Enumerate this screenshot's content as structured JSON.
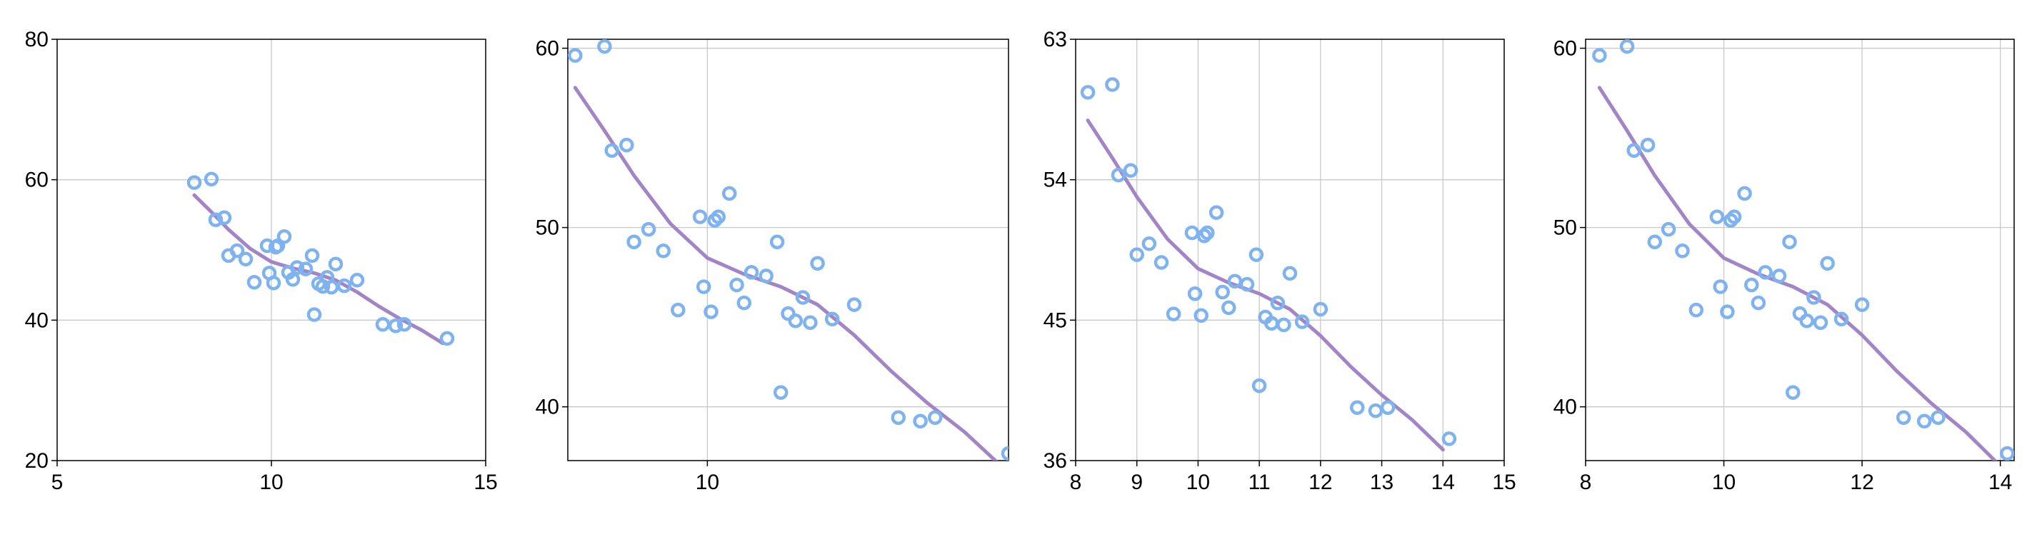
{
  "chart_data": [
    {
      "type": "scatter",
      "xlim": [
        5,
        15
      ],
      "ylim": [
        20,
        80
      ],
      "xticks": [
        5,
        10,
        15
      ],
      "yticks": [
        20,
        40,
        60,
        80
      ],
      "grid": true,
      "series": [
        {
          "kind": "points",
          "color": "#7fb3ef",
          "points": [
            [
              8.2,
              59.6
            ],
            [
              8.6,
              60.1
            ],
            [
              8.7,
              54.3
            ],
            [
              8.9,
              54.6
            ],
            [
              9.0,
              49.2
            ],
            [
              9.2,
              49.9
            ],
            [
              9.4,
              48.7
            ],
            [
              9.6,
              45.4
            ],
            [
              9.9,
              50.6
            ],
            [
              9.95,
              46.7
            ],
            [
              10.05,
              45.3
            ],
            [
              10.1,
              50.4
            ],
            [
              10.15,
              50.6
            ],
            [
              10.3,
              51.9
            ],
            [
              10.4,
              46.8
            ],
            [
              10.5,
              45.8
            ],
            [
              10.6,
              47.5
            ],
            [
              10.8,
              47.3
            ],
            [
              10.95,
              49.2
            ],
            [
              11.0,
              40.8
            ],
            [
              11.1,
              45.2
            ],
            [
              11.2,
              44.8
            ],
            [
              11.3,
              46.1
            ],
            [
              11.4,
              44.7
            ],
            [
              11.5,
              48.0
            ],
            [
              11.7,
              44.9
            ],
            [
              12.0,
              45.7
            ],
            [
              12.6,
              39.4
            ],
            [
              12.9,
              39.2
            ],
            [
              13.1,
              39.4
            ],
            [
              14.1,
              37.4
            ]
          ]
        },
        {
          "kind": "line",
          "color": "#a285c7",
          "points": [
            [
              8.2,
              57.8
            ],
            [
              8.6,
              55.4
            ],
            [
              9.0,
              52.9
            ],
            [
              9.5,
              50.2
            ],
            [
              10.0,
              48.3
            ],
            [
              10.5,
              47.4
            ],
            [
              11.0,
              46.7
            ],
            [
              11.5,
              45.7
            ],
            [
              12.0,
              44.0
            ],
            [
              12.5,
              42.0
            ],
            [
              13.0,
              40.2
            ],
            [
              13.5,
              38.6
            ],
            [
              14.0,
              36.7
            ]
          ]
        }
      ]
    },
    {
      "type": "scatter",
      "xlim": [
        8.1,
        14.1
      ],
      "ylim": [
        37,
        60.5
      ],
      "xticks": [
        10
      ],
      "yticks": [
        40,
        50,
        60
      ],
      "grid": true,
      "series": [
        {
          "kind": "points",
          "color": "#7fb3ef",
          "points": [
            [
              8.2,
              59.6
            ],
            [
              8.6,
              60.1
            ],
            [
              8.7,
              54.3
            ],
            [
              8.9,
              54.6
            ],
            [
              9.0,
              49.2
            ],
            [
              9.2,
              49.9
            ],
            [
              9.4,
              48.7
            ],
            [
              9.6,
              45.4
            ],
            [
              9.9,
              50.6
            ],
            [
              9.95,
              46.7
            ],
            [
              10.05,
              45.3
            ],
            [
              10.1,
              50.4
            ],
            [
              10.15,
              50.6
            ],
            [
              10.3,
              51.9
            ],
            [
              10.4,
              46.8
            ],
            [
              10.5,
              45.8
            ],
            [
              10.6,
              47.5
            ],
            [
              10.8,
              47.3
            ],
            [
              10.95,
              49.2
            ],
            [
              11.0,
              40.8
            ],
            [
              11.1,
              45.2
            ],
            [
              11.2,
              44.8
            ],
            [
              11.3,
              46.1
            ],
            [
              11.4,
              44.7
            ],
            [
              11.5,
              48.0
            ],
            [
              11.7,
              44.9
            ],
            [
              12.0,
              45.7
            ],
            [
              12.6,
              39.4
            ],
            [
              12.9,
              39.2
            ],
            [
              13.1,
              39.4
            ],
            [
              14.1,
              37.4
            ]
          ]
        },
        {
          "kind": "line",
          "color": "#a285c7",
          "points": [
            [
              8.2,
              57.8
            ],
            [
              8.6,
              55.4
            ],
            [
              9.0,
              52.9
            ],
            [
              9.5,
              50.2
            ],
            [
              10.0,
              48.3
            ],
            [
              10.5,
              47.4
            ],
            [
              11.0,
              46.7
            ],
            [
              11.5,
              45.7
            ],
            [
              12.0,
              44.0
            ],
            [
              12.5,
              42.0
            ],
            [
              13.0,
              40.2
            ],
            [
              13.5,
              38.6
            ],
            [
              14.0,
              36.7
            ]
          ]
        }
      ]
    },
    {
      "type": "scatter",
      "xlim": [
        8,
        15
      ],
      "ylim": [
        36,
        63
      ],
      "xticks": [
        8,
        9,
        10,
        11,
        12,
        13,
        14,
        15
      ],
      "yticks": [
        36,
        45,
        54,
        63
      ],
      "grid": true,
      "series": [
        {
          "kind": "points",
          "color": "#7fb3ef",
          "points": [
            [
              8.2,
              59.6
            ],
            [
              8.6,
              60.1
            ],
            [
              8.7,
              54.3
            ],
            [
              8.9,
              54.6
            ],
            [
              9.0,
              49.2
            ],
            [
              9.2,
              49.9
            ],
            [
              9.4,
              48.7
            ],
            [
              9.6,
              45.4
            ],
            [
              9.9,
              50.6
            ],
            [
              9.95,
              46.7
            ],
            [
              10.05,
              45.3
            ],
            [
              10.1,
              50.4
            ],
            [
              10.15,
              50.6
            ],
            [
              10.3,
              51.9
            ],
            [
              10.4,
              46.8
            ],
            [
              10.5,
              45.8
            ],
            [
              10.6,
              47.5
            ],
            [
              10.8,
              47.3
            ],
            [
              10.95,
              49.2
            ],
            [
              11.0,
              40.8
            ],
            [
              11.1,
              45.2
            ],
            [
              11.2,
              44.8
            ],
            [
              11.3,
              46.1
            ],
            [
              11.4,
              44.7
            ],
            [
              11.5,
              48.0
            ],
            [
              11.7,
              44.9
            ],
            [
              12.0,
              45.7
            ],
            [
              12.6,
              39.4
            ],
            [
              12.9,
              39.2
            ],
            [
              13.1,
              39.4
            ],
            [
              14.1,
              37.4
            ]
          ]
        },
        {
          "kind": "line",
          "color": "#a285c7",
          "points": [
            [
              8.2,
              57.8
            ],
            [
              8.6,
              55.4
            ],
            [
              9.0,
              52.9
            ],
            [
              9.5,
              50.2
            ],
            [
              10.0,
              48.3
            ],
            [
              10.5,
              47.4
            ],
            [
              11.0,
              46.7
            ],
            [
              11.5,
              45.7
            ],
            [
              12.0,
              44.0
            ],
            [
              12.5,
              42.0
            ],
            [
              13.0,
              40.2
            ],
            [
              13.5,
              38.6
            ],
            [
              14.0,
              36.7
            ]
          ]
        }
      ]
    },
    {
      "type": "scatter",
      "xlim": [
        8,
        14.2
      ],
      "ylim": [
        37,
        60.5
      ],
      "xticks": [
        8,
        10,
        12,
        14
      ],
      "yticks": [
        40,
        50,
        60
      ],
      "grid": true,
      "series": [
        {
          "kind": "points",
          "color": "#7fb3ef",
          "points": [
            [
              8.2,
              59.6
            ],
            [
              8.6,
              60.1
            ],
            [
              8.7,
              54.3
            ],
            [
              8.9,
              54.6
            ],
            [
              9.0,
              49.2
            ],
            [
              9.2,
              49.9
            ],
            [
              9.4,
              48.7
            ],
            [
              9.6,
              45.4
            ],
            [
              9.9,
              50.6
            ],
            [
              9.95,
              46.7
            ],
            [
              10.05,
              45.3
            ],
            [
              10.1,
              50.4
            ],
            [
              10.15,
              50.6
            ],
            [
              10.3,
              51.9
            ],
            [
              10.4,
              46.8
            ],
            [
              10.5,
              45.8
            ],
            [
              10.6,
              47.5
            ],
            [
              10.8,
              47.3
            ],
            [
              10.95,
              49.2
            ],
            [
              11.0,
              40.8
            ],
            [
              11.1,
              45.2
            ],
            [
              11.2,
              44.8
            ],
            [
              11.3,
              46.1
            ],
            [
              11.4,
              44.7
            ],
            [
              11.5,
              48.0
            ],
            [
              11.7,
              44.9
            ],
            [
              12.0,
              45.7
            ],
            [
              12.6,
              39.4
            ],
            [
              12.9,
              39.2
            ],
            [
              13.1,
              39.4
            ],
            [
              14.1,
              37.4
            ]
          ]
        },
        {
          "kind": "line",
          "color": "#a285c7",
          "points": [
            [
              8.2,
              57.8
            ],
            [
              8.6,
              55.4
            ],
            [
              9.0,
              52.9
            ],
            [
              9.5,
              50.2
            ],
            [
              10.0,
              48.3
            ],
            [
              10.5,
              47.4
            ],
            [
              11.0,
              46.7
            ],
            [
              11.5,
              45.7
            ],
            [
              12.0,
              44.0
            ],
            [
              12.5,
              42.0
            ],
            [
              13.0,
              40.2
            ],
            [
              13.5,
              38.6
            ],
            [
              14.0,
              36.7
            ]
          ]
        }
      ]
    }
  ]
}
